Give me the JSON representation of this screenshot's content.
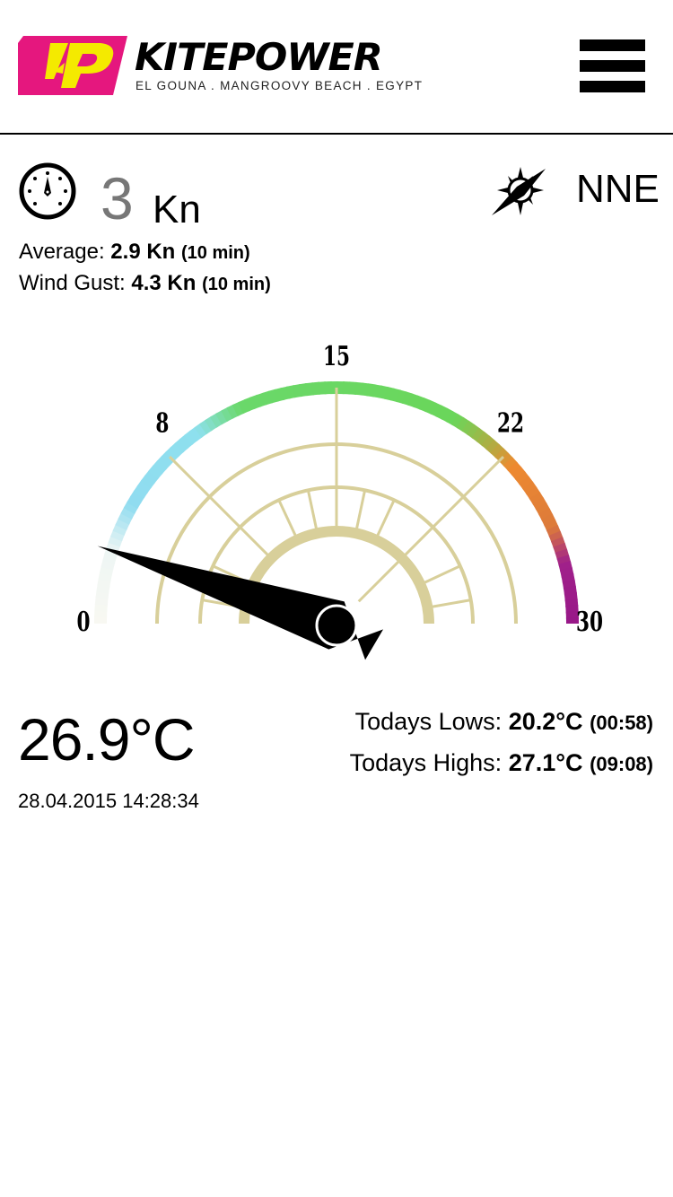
{
  "header": {
    "logo_word": "KITEPOWER",
    "logo_subtitle": "EL GOUNA . MANGROOVY BEACH . EGYPT",
    "logo_colors": {
      "magenta": "#e5177e",
      "yellow": "#f4ea00"
    },
    "menu_icon": "hamburger-menu-icon"
  },
  "wind": {
    "speed_icon": "speedometer-icon",
    "speed": "3",
    "unit": "Kn",
    "average_label": "Average:",
    "average_value": "2.9 Kn",
    "average_period": "(10 min)",
    "gust_label": "Wind Gust:",
    "gust_value": "4.3 Kn",
    "gust_period": "(10 min)",
    "direction_icon": "compass-icon",
    "direction": "NNE"
  },
  "gauge": {
    "min": 0,
    "max": 30,
    "value": 3,
    "labels": [
      "0",
      "8",
      "15",
      "22",
      "30"
    ],
    "label_values": [
      0,
      8,
      15,
      22,
      30
    ],
    "color_stops": [
      {
        "at": 0,
        "color": "#f8f8f2"
      },
      {
        "at": 3,
        "color": "#eef6f4"
      },
      {
        "at": 5,
        "color": "#90dcf0"
      },
      {
        "at": 9,
        "color": "#8ee0ee"
      },
      {
        "at": 11,
        "color": "#6ad86a"
      },
      {
        "at": 20,
        "color": "#6ad65a"
      },
      {
        "at": 22,
        "color": "#b8a840"
      },
      {
        "at": 23,
        "color": "#ee8a30"
      },
      {
        "at": 26,
        "color": "#dc7a3a"
      },
      {
        "at": 27.5,
        "color": "#a0208a"
      },
      {
        "at": 30,
        "color": "#981888"
      }
    ],
    "frame_color": "#d8cf9a",
    "needle_color": "#000000"
  },
  "temperature": {
    "current": "26.9°C",
    "timestamp": "28.04.2015 14:28:34",
    "lows_label": "Todays Lows:",
    "lows_value": "20.2°C",
    "lows_time": "(00:58)",
    "highs_label": "Todays Highs:",
    "highs_value": "27.1°C",
    "highs_time": "(09:08)"
  }
}
